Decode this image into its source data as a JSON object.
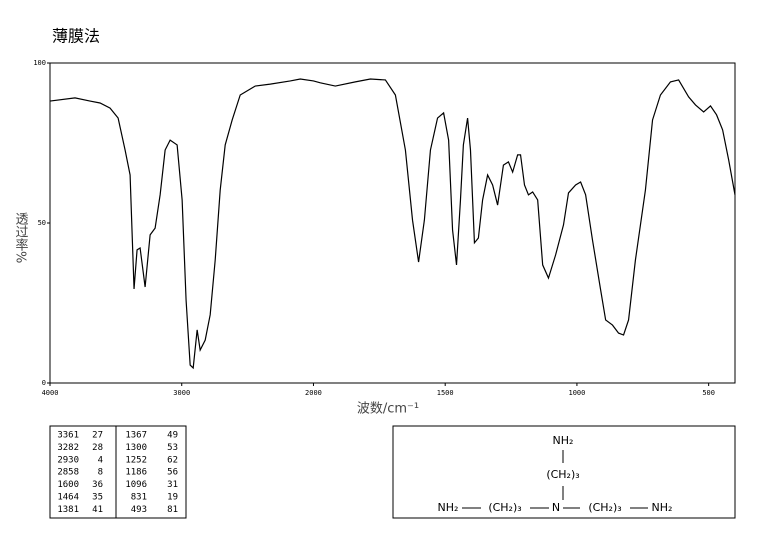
{
  "chart_data": {
    "type": "line",
    "title": "薄膜法",
    "x_label": "波数/cm⁻¹",
    "y_label": "透过率%",
    "x": [
      4000,
      3810,
      3696,
      3620,
      3544,
      3483,
      3430,
      3392,
      3362,
      3339,
      3316,
      3278,
      3240,
      3202,
      3164,
      3126,
      3088,
      3035,
      2997,
      2967,
      2936,
      2913,
      2883,
      2860,
      2822,
      2784,
      2746,
      2708,
      2670,
      2617,
      2556,
      2442,
      2328,
      2176,
      2100,
      2000,
      1974,
      1917,
      1841,
      1784,
      1727,
      1689,
      1651,
      1624,
      1601,
      1579,
      1556,
      1529,
      1506,
      1487,
      1472,
      1457,
      1442,
      1431,
      1415,
      1404,
      1389,
      1374,
      1358,
      1339,
      1320,
      1301,
      1279,
      1260,
      1244,
      1225,
      1214,
      1199,
      1184,
      1168,
      1149,
      1130,
      1108,
      1081,
      1051,
      1032,
      1005,
      986,
      967,
      941,
      910,
      891,
      865,
      842,
      823,
      804,
      778,
      740,
      713,
      683,
      645,
      614,
      576,
      550,
      519,
      493,
      470,
      447,
      424,
      400
    ],
    "values": [
      88.1,
      89.1,
      88.1,
      87.5,
      85.9,
      82.8,
      72.8,
      65.0,
      29.4,
      41.6,
      42.2,
      30.0,
      46.3,
      48.4,
      58.8,
      72.8,
      75.9,
      74.4,
      57.2,
      25.9,
      5.6,
      4.7,
      16.6,
      10.3,
      13.4,
      21.3,
      38.4,
      60.3,
      74.4,
      82.2,
      90.0,
      92.8,
      93.4,
      94.4,
      95.0,
      94.4,
      93.8,
      92.8,
      94.1,
      95.0,
      94.7,
      90.0,
      72.8,
      50.9,
      37.8,
      50.9,
      72.8,
      82.8,
      84.4,
      75.9,
      47.8,
      36.9,
      57.2,
      74.4,
      82.8,
      72.8,
      43.8,
      45.3,
      57.2,
      65.0,
      61.9,
      55.6,
      68.1,
      69.1,
      65.9,
      71.3,
      71.3,
      61.9,
      58.8,
      59.7,
      57.2,
      36.9,
      32.8,
      40.0,
      49.4,
      59.4,
      61.9,
      62.8,
      58.8,
      44.7,
      29.1,
      19.7,
      18.1,
      15.6,
      15.0,
      19.7,
      38.4,
      60.3,
      82.2,
      90.0,
      94.1,
      94.7,
      89.4,
      86.9,
      84.7,
      86.6,
      83.8,
      79.1,
      69.7,
      58.8
    ],
    "color": "#000000",
    "xlim": [
      4000,
      400
    ],
    "xticks": [
      4000,
      3000,
      2000,
      1500,
      1000,
      500
    ],
    "ylim": [
      0,
      100
    ],
    "yticks": [
      0,
      50,
      100
    ],
    "grid": false
  },
  "peak_table": {
    "rows": [
      [
        3361,
        27,
        1367,
        49
      ],
      [
        3282,
        28,
        1300,
        53
      ],
      [
        2930,
        4,
        1252,
        62
      ],
      [
        2858,
        8,
        1186,
        56
      ],
      [
        1600,
        36,
        1096,
        31
      ],
      [
        1464,
        35,
        831,
        19
      ],
      [
        1381,
        41,
        493,
        81
      ]
    ]
  },
  "structure": {
    "top": "NH₂",
    "top_chain": "(CH₂)₃",
    "left": "NH₂",
    "left_chain": "(CH₂)₃",
    "center": "N",
    "right_chain": "(CH₂)₃",
    "right": "NH₂"
  }
}
